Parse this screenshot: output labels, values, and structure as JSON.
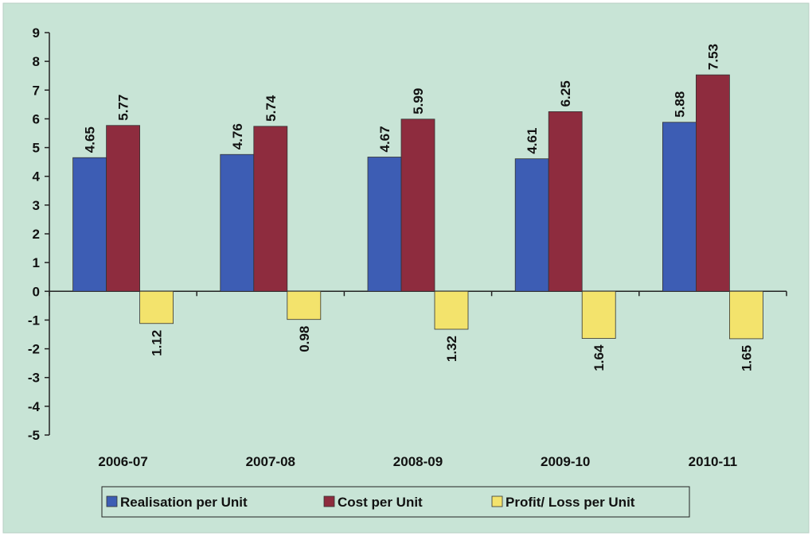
{
  "chart_data": {
    "type": "bar",
    "categories": [
      "2006-07",
      "2007-08",
      "2008-09",
      "2009-10",
      "2010-11"
    ],
    "series": [
      {
        "name": "Realisation per Unit",
        "color": "#3d5db4",
        "values": [
          4.65,
          4.76,
          4.67,
          4.61,
          5.88
        ]
      },
      {
        "name": "Cost per Unit",
        "color": "#8e2c3e",
        "values": [
          5.77,
          5.74,
          5.99,
          6.25,
          7.53
        ]
      },
      {
        "name": "Profit/ Loss per Unit",
        "color": "#f3e36c",
        "values": [
          -1.12,
          -0.98,
          -1.32,
          -1.64,
          -1.65
        ],
        "value_labels": [
          "1.12",
          "0.98",
          "1.32",
          "1.64",
          "1.65"
        ]
      }
    ],
    "ylim": [
      -5,
      9
    ],
    "yticks": [
      -5,
      -4,
      -3,
      -2,
      -1,
      0,
      1,
      2,
      3,
      4,
      5,
      6,
      7,
      8,
      9
    ],
    "legend": "bottom"
  }
}
